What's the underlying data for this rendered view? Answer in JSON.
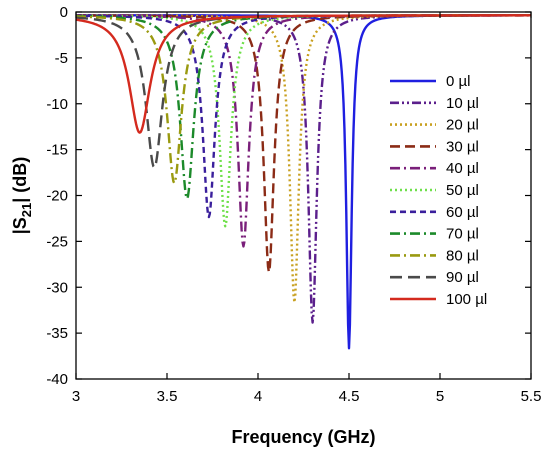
{
  "chart_data": {
    "type": "line",
    "title": "",
    "xlabel": "Frequency (GHz)",
    "ylabel_parts": {
      "pre": "|S",
      "sub": "21",
      "post": "| (dB)"
    },
    "xlim": [
      3,
      5.5
    ],
    "ylim": [
      -40,
      0
    ],
    "x_ticks": [
      "3",
      "3.5",
      "4",
      "4.5",
      "5",
      "5.5"
    ],
    "y_ticks": [
      "0",
      "-5",
      "-10",
      "-15",
      "-20",
      "-25",
      "-30",
      "-35",
      "-40"
    ],
    "grid": false,
    "legend_position": "right",
    "series": [
      {
        "name": "0 µl",
        "color": "#1f1fe0",
        "dash": "solid",
        "f0": 4.5,
        "min_db": -36.3,
        "width": 0.018
      },
      {
        "name": "10 µl",
        "color": "#5b1f8c",
        "dash": "dashdotdot",
        "f0": 4.3,
        "min_db": -33.5,
        "width": 0.028
      },
      {
        "name": "20 µl",
        "color": "#c8a020",
        "dash": "dotted",
        "f0": 4.2,
        "min_db": -31.3,
        "width": 0.03
      },
      {
        "name": "30 µl",
        "color": "#8b2b16",
        "dash": "dashed",
        "f0": 4.06,
        "min_db": -28.0,
        "width": 0.034
      },
      {
        "name": "40 µl",
        "color": "#7a1f7a",
        "dash": "dashdot",
        "f0": 3.92,
        "min_db": -25.2,
        "width": 0.036
      },
      {
        "name": "50 µl",
        "color": "#6fe04a",
        "dash": "dotted",
        "f0": 3.82,
        "min_db": -23.0,
        "width": 0.038
      },
      {
        "name": "60 µl",
        "color": "#3a1f9c",
        "dash": "shortdash",
        "f0": 3.73,
        "min_db": -22.0,
        "width": 0.04
      },
      {
        "name": "70 µl",
        "color": "#1c8a2a",
        "dash": "dashdot",
        "f0": 3.61,
        "min_db": -20.0,
        "width": 0.045
      },
      {
        "name": "80 µl",
        "color": "#9a9a10",
        "dash": "dashdot",
        "f0": 3.54,
        "min_db": -18.3,
        "width": 0.048
      },
      {
        "name": "90 µl",
        "color": "#4a4a4a",
        "dash": "longdash",
        "f0": 3.43,
        "min_db": -16.6,
        "width": 0.055
      },
      {
        "name": "100 µl",
        "color": "#d42a1e",
        "dash": "solid",
        "f0": 3.35,
        "min_db": -12.8,
        "width": 0.07
      }
    ]
  }
}
